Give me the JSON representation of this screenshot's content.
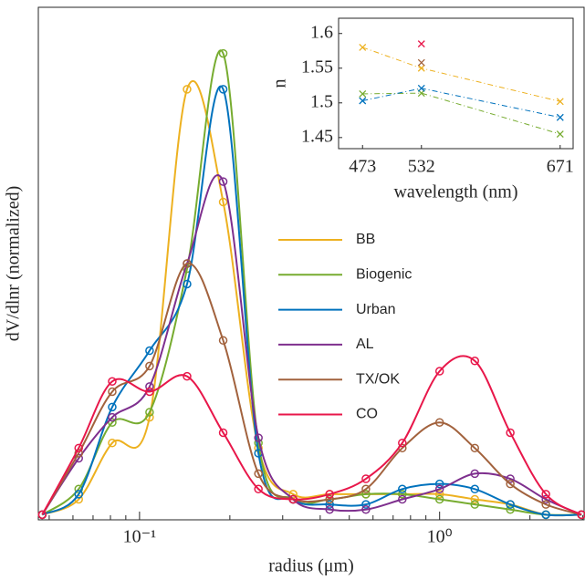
{
  "chart_data": [
    {
      "type": "line",
      "xlabel": "radius (μm)",
      "ylabel": "dV/dlnr (normalized)",
      "xscale": "log",
      "xlim": [
        0.046,
        3.03
      ],
      "ylim": [
        0,
        1
      ],
      "xticks": [
        {
          "value": 0.1,
          "label": "10⁻¹"
        },
        {
          "value": 1,
          "label": "10⁰"
        }
      ],
      "xminorticks": [
        0.05,
        0.06,
        0.07,
        0.08,
        0.09,
        0.2,
        0.3,
        0.4,
        0.5,
        0.6,
        0.7,
        0.8,
        0.9,
        2,
        3
      ],
      "legend": "center-right",
      "x": [
        0.0474,
        0.0627,
        0.0811,
        0.108,
        0.144,
        0.19,
        0.249,
        0.325,
        0.43,
        0.568,
        0.751,
        1.0,
        1.31,
        1.72,
        2.26,
        2.97
      ],
      "series": [
        {
          "name": "BB",
          "color": "#EDB120",
          "values": [
            0.01,
            0.04,
            0.15,
            0.2,
            0.84,
            0.62,
            0.14,
            0.05,
            0.05,
            0.05,
            0.05,
            0.05,
            0.04,
            0.03,
            0.01,
            0.01
          ]
        },
        {
          "name": "Biogenic",
          "color": "#77AC30",
          "values": [
            0.01,
            0.06,
            0.19,
            0.21,
            0.49,
            0.91,
            0.15,
            0.04,
            0.04,
            0.05,
            0.05,
            0.04,
            0.03,
            0.02,
            0.01,
            0.01
          ]
        },
        {
          "name": "Urban",
          "color": "#0072BD",
          "values": [
            0.01,
            0.05,
            0.22,
            0.33,
            0.46,
            0.84,
            0.13,
            0.04,
            0.03,
            0.03,
            0.06,
            0.07,
            0.06,
            0.03,
            0.01,
            0.01
          ]
        },
        {
          "name": "AL",
          "color": "#7E2F8E",
          "values": [
            0.01,
            0.12,
            0.2,
            0.26,
            0.5,
            0.66,
            0.16,
            0.04,
            0.02,
            0.02,
            0.04,
            0.06,
            0.09,
            0.08,
            0.04,
            0.01
          ]
        },
        {
          "name": "TX/OK",
          "color": "#A2623D",
          "values": [
            0.01,
            0.13,
            0.25,
            0.3,
            0.5,
            0.35,
            0.09,
            0.04,
            0.04,
            0.06,
            0.14,
            0.19,
            0.14,
            0.07,
            0.03,
            0.01
          ]
        },
        {
          "name": "CO",
          "color": "#E8174A",
          "values": [
            0.01,
            0.14,
            0.27,
            0.25,
            0.28,
            0.17,
            0.06,
            0.04,
            0.05,
            0.08,
            0.15,
            0.29,
            0.31,
            0.17,
            0.05,
            0.01
          ]
        }
      ]
    },
    {
      "type": "line",
      "xlabel": "wavelength (nm)",
      "ylabel": "n",
      "xlim": [
        449,
        684
      ],
      "ylim": [
        1.434,
        1.622
      ],
      "xticks": [
        473,
        532,
        671
      ],
      "yticks": [
        1.45,
        1.5,
        1.55,
        1.6
      ],
      "x": [
        473,
        532,
        671
      ],
      "series": [
        {
          "color": "#EDB120",
          "values": [
            1.58,
            1.55,
            1.502
          ]
        },
        {
          "color": "#77AC30",
          "values": [
            1.513,
            1.514,
            1.455
          ]
        },
        {
          "color": "#0072BD",
          "values": [
            1.503,
            1.521,
            1.479
          ]
        },
        {
          "color": "#A2623D",
          "values": [
            null,
            1.558,
            null
          ]
        },
        {
          "color": "#E8174A",
          "values": [
            null,
            1.585,
            null
          ]
        }
      ]
    }
  ]
}
